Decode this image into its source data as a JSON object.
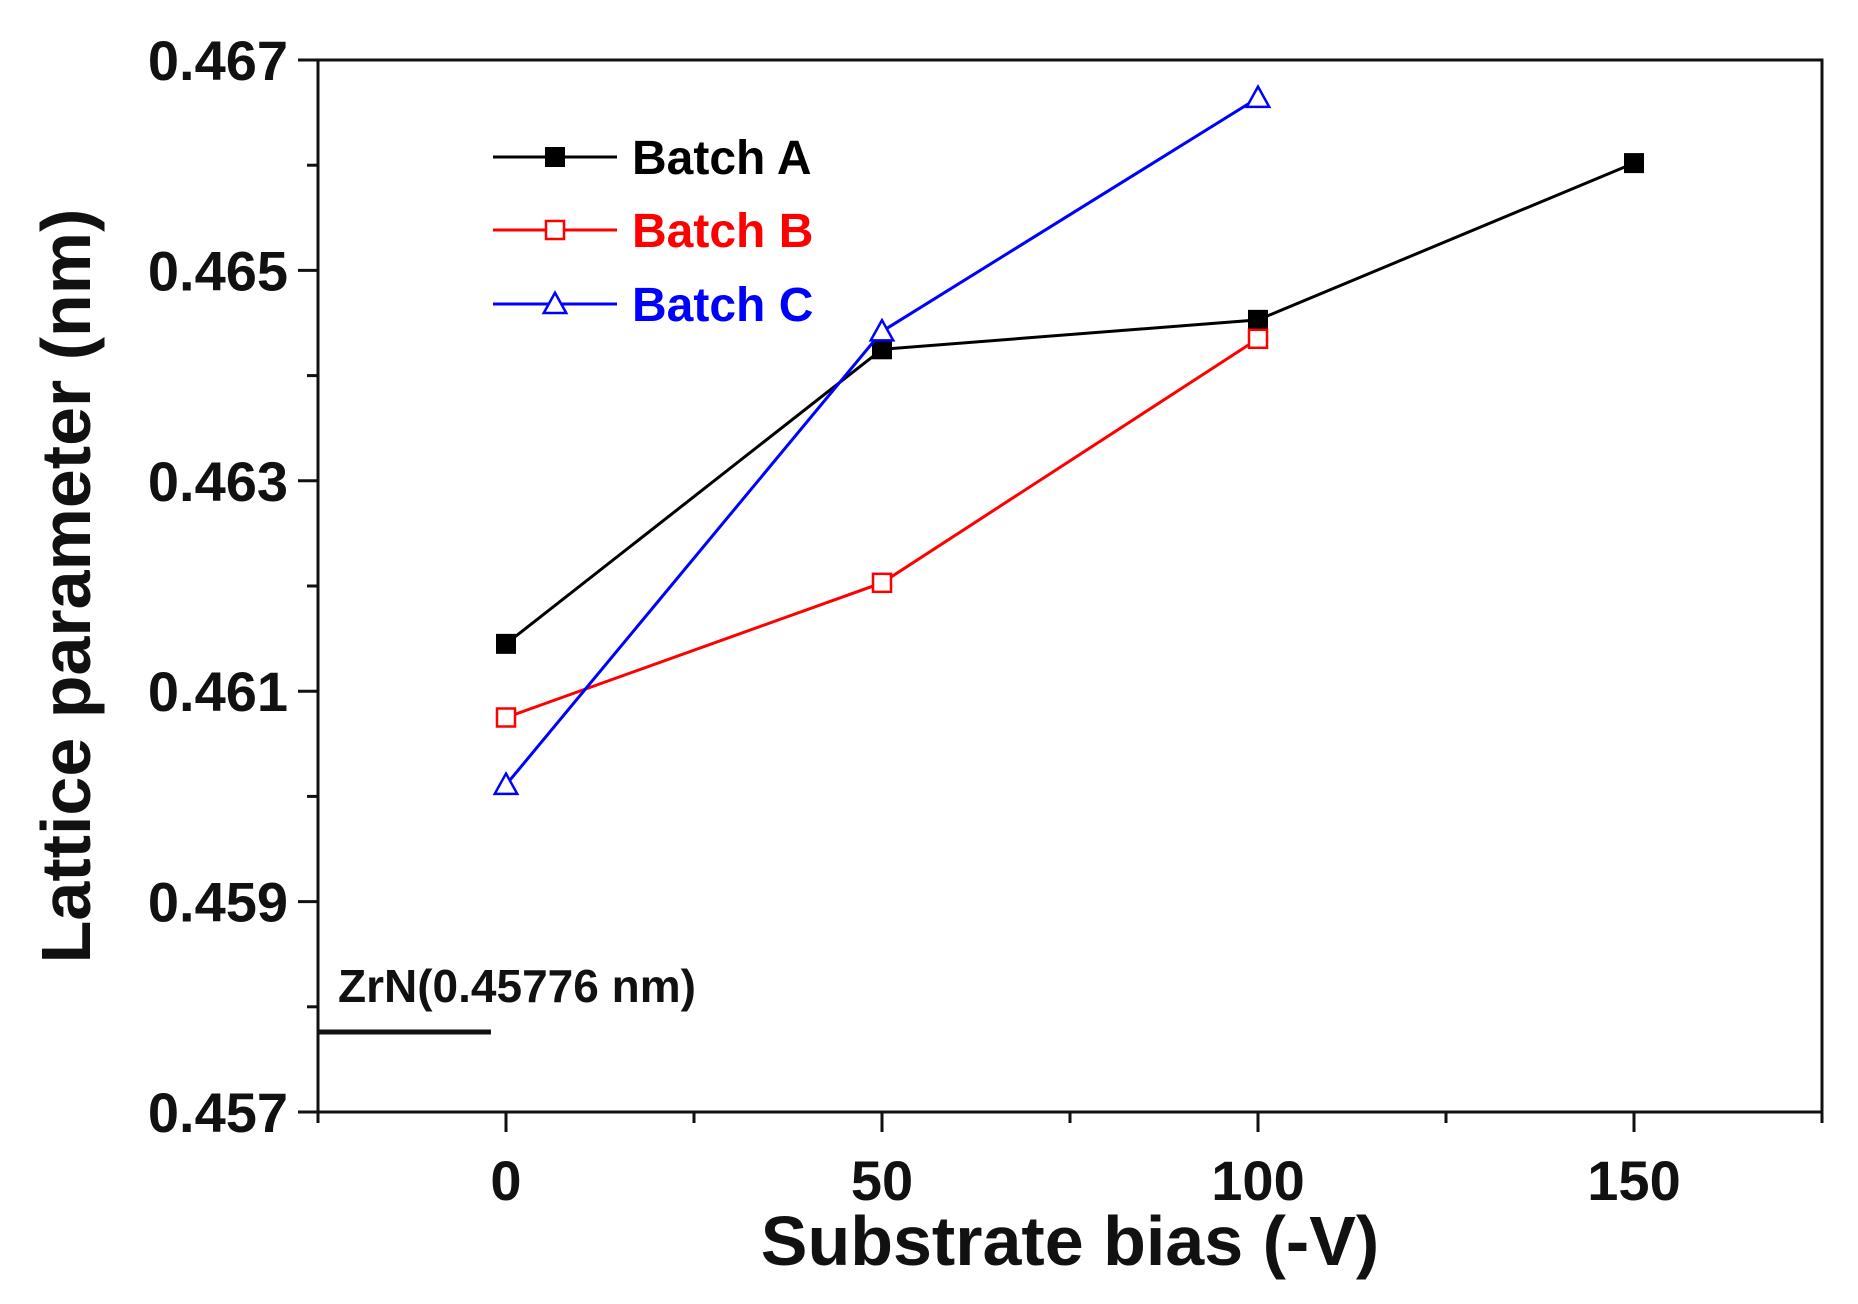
{
  "chart_data": {
    "type": "line",
    "title": "",
    "xlabel": "Substrate bias (-V)",
    "ylabel": "Lattice parameter (nm)",
    "xlim": [
      -25,
      175
    ],
    "ylim": [
      0.457,
      0.467
    ],
    "x_ticks": [
      0,
      50,
      100,
      150
    ],
    "x_tick_labels": [
      "0",
      "50",
      "100",
      "150"
    ],
    "x_minor_ticks": [
      -25,
      25,
      75,
      125,
      175
    ],
    "y_ticks": [
      0.457,
      0.459,
      0.461,
      0.463,
      0.465,
      0.467
    ],
    "y_tick_labels": [
      "0.457",
      "0.459",
      "0.461",
      "0.463",
      "0.465",
      "0.467"
    ],
    "y_minor_ticks": [
      0.458,
      0.46,
      0.462,
      0.464,
      0.466
    ],
    "grid": false,
    "legend_position": "top-left",
    "series": [
      {
        "name": "Batch A",
        "color": "#000000",
        "marker": "filled-square",
        "x": [
          0,
          50,
          100,
          150
        ],
        "y": [
          0.46145,
          0.46425,
          0.46453,
          0.46602
        ]
      },
      {
        "name": "Batch B",
        "color": "#ff0000",
        "marker": "open-square",
        "x": [
          0,
          50,
          100
        ],
        "y": [
          0.46075,
          0.46203,
          0.46435
        ]
      },
      {
        "name": "Batch C",
        "color": "#0000ff",
        "marker": "open-triangle",
        "x": [
          0,
          50,
          100
        ],
        "y": [
          0.46011,
          0.46442,
          0.46664
        ]
      }
    ],
    "annotations": [
      {
        "text": "ZrN(0.45776 nm)",
        "y": 0.45776,
        "x_range": [
          -25,
          -2
        ]
      }
    ]
  }
}
